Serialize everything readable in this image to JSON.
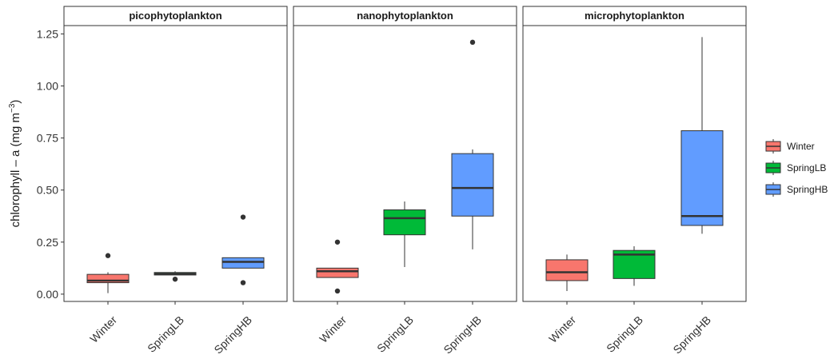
{
  "chart_data": {
    "type": "boxplot",
    "ylabel": "chlorophyll – a (mg m",
    "ylabel_sup": "−3",
    "ylabel_close": ")",
    "ylim": [
      -0.035,
      1.29
    ],
    "yticks": [
      0.0,
      0.25,
      0.5,
      0.75,
      1.0,
      1.25
    ],
    "ytick_labels": [
      "0.00",
      "0.25",
      "0.50",
      "0.75",
      "1.00",
      "1.25"
    ],
    "categories": [
      "Winter",
      "SpringLB",
      "SpringHB"
    ],
    "colors": {
      "Winter": "#f8766d",
      "SpringLB": "#00ba38",
      "SpringHB": "#619cff"
    },
    "legend": {
      "position": "right",
      "entries": [
        "Winter",
        "SpringLB",
        "SpringHB"
      ]
    },
    "grid": false,
    "panels": [
      {
        "title": "picophytoplankton",
        "boxes": [
          {
            "category": "Winter",
            "lower_whisker": 0.005,
            "q1": 0.055,
            "median": 0.065,
            "q3": 0.095,
            "upper_whisker": 0.105,
            "outliers": [
              0.185
            ]
          },
          {
            "category": "SpringLB",
            "lower_whisker": 0.092,
            "q1": 0.092,
            "median": 0.098,
            "q3": 0.104,
            "upper_whisker": 0.11,
            "outliers": [
              0.072
            ]
          },
          {
            "category": "SpringHB",
            "lower_whisker": 0.125,
            "q1": 0.125,
            "median": 0.155,
            "q3": 0.175,
            "upper_whisker": 0.175,
            "outliers": [
              0.37,
              0.055
            ]
          }
        ]
      },
      {
        "title": "nanophytoplankton",
        "boxes": [
          {
            "category": "Winter",
            "lower_whisker": 0.08,
            "q1": 0.08,
            "median": 0.11,
            "q3": 0.125,
            "upper_whisker": 0.125,
            "outliers": [
              0.25,
              0.015
            ]
          },
          {
            "category": "SpringLB",
            "lower_whisker": 0.13,
            "q1": 0.285,
            "median": 0.365,
            "q3": 0.405,
            "upper_whisker": 0.445,
            "outliers": []
          },
          {
            "category": "SpringHB",
            "lower_whisker": 0.215,
            "q1": 0.375,
            "median": 0.51,
            "q3": 0.675,
            "upper_whisker": 0.695,
            "outliers": [
              1.21
            ]
          }
        ]
      },
      {
        "title": "microphytoplankton",
        "boxes": [
          {
            "category": "Winter",
            "lower_whisker": 0.015,
            "q1": 0.065,
            "median": 0.105,
            "q3": 0.165,
            "upper_whisker": 0.19,
            "outliers": []
          },
          {
            "category": "SpringLB",
            "lower_whisker": 0.04,
            "q1": 0.075,
            "median": 0.19,
            "q3": 0.21,
            "upper_whisker": 0.23,
            "outliers": []
          },
          {
            "category": "SpringHB",
            "lower_whisker": 0.29,
            "q1": 0.33,
            "median": 0.375,
            "q3": 0.785,
            "upper_whisker": 1.235,
            "outliers": []
          }
        ]
      }
    ]
  }
}
